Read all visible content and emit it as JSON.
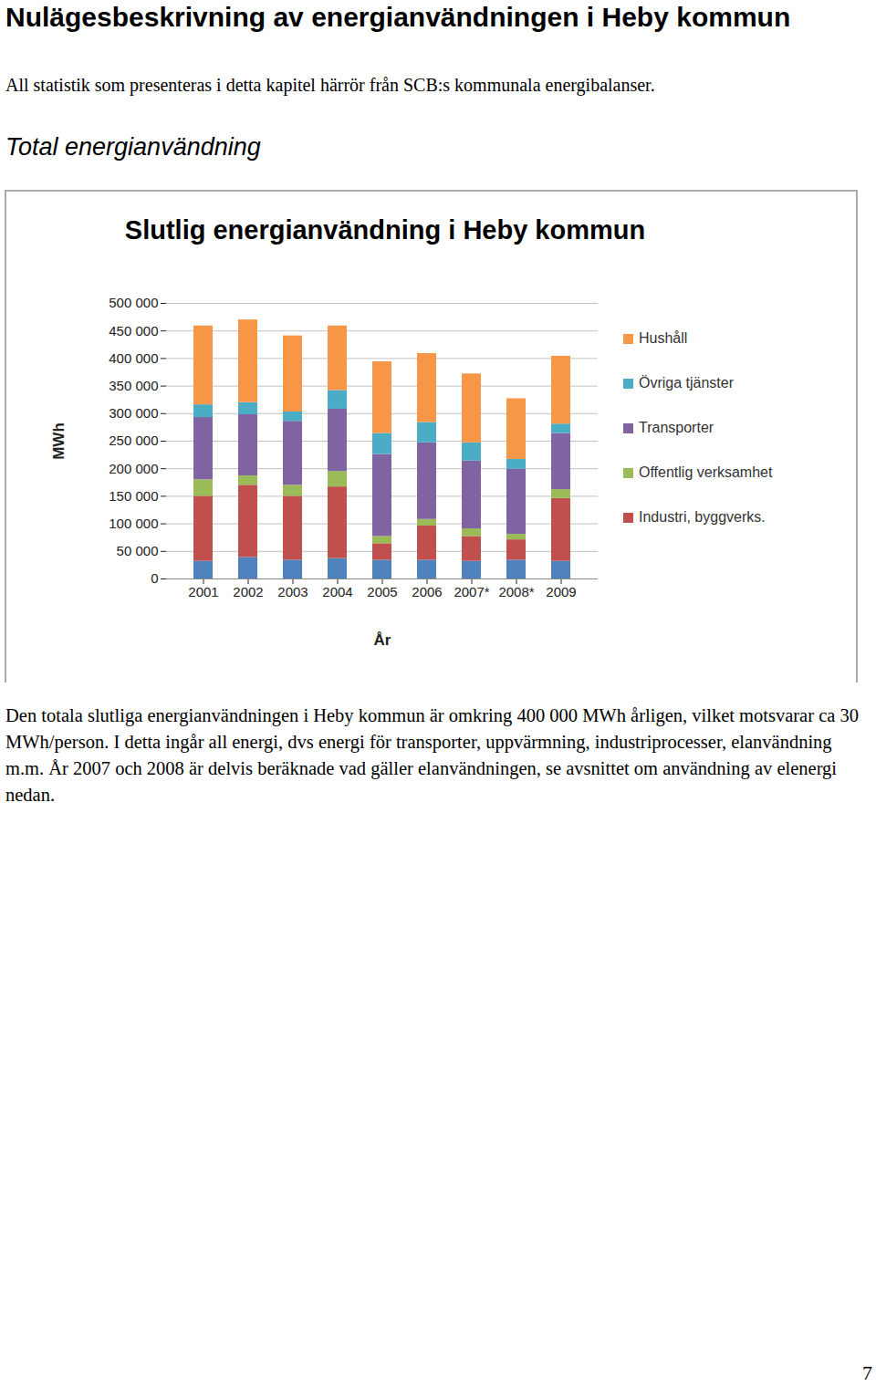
{
  "heading": "Nulägesbeskrivning av energianvändningen i Heby kommun",
  "intro": "All statistik som presenteras i detta kapitel härrör från SCB:s kommunala energibalanser.",
  "section_title": "Total energianvändning",
  "chart_data": {
    "type": "bar",
    "stacked": true,
    "title": "Slutlig energianvändning i Heby kommun",
    "x_label": "År",
    "y_label": "MWh",
    "categories": [
      "2001",
      "2002",
      "2003",
      "2004",
      "2005",
      "2006",
      "2007*",
      "2008*",
      "2009"
    ],
    "series": [
      {
        "name": null,
        "color": "#4f81bd",
        "values": [
          32000,
          39000,
          34000,
          37000,
          34000,
          34000,
          32000,
          34000,
          32000
        ]
      },
      {
        "name": "Industri, byggverks.",
        "color": "#c0504d",
        "values": [
          118000,
          131000,
          116000,
          130000,
          30000,
          62000,
          45000,
          37000,
          114000
        ]
      },
      {
        "name": "Offentlig verksamhet",
        "color": "#9bbb59",
        "values": [
          30000,
          17000,
          20000,
          28000,
          13000,
          12000,
          14000,
          10000,
          16000
        ]
      },
      {
        "name": "Transporter",
        "color": "#8064a2",
        "values": [
          113000,
          111000,
          116000,
          113000,
          149000,
          139000,
          123000,
          118000,
          102000
        ]
      },
      {
        "name": "Övriga tjänster",
        "color": "#4bacc6",
        "values": [
          23000,
          22000,
          17000,
          34000,
          38000,
          37000,
          33000,
          18000,
          17000
        ]
      },
      {
        "name": "Hushåll",
        "color": "#f79646",
        "values": [
          143000,
          150000,
          138000,
          117000,
          130000,
          125000,
          125000,
          110000,
          123000
        ]
      }
    ],
    "ylim": [
      0,
      500000
    ],
    "yticks": [
      0,
      {
        "value": 50000,
        "label": "50 000"
      },
      {
        "value": 100000,
        "label": "100 000"
      },
      {
        "value": 150000,
        "label": "150 000"
      },
      {
        "value": 200000,
        "label": "200 000"
      },
      {
        "value": 250000,
        "label": "250 000"
      },
      {
        "value": 300000,
        "label": "300 000"
      },
      {
        "value": 350000,
        "label": "350 000"
      },
      {
        "value": 400000,
        "label": "400 000"
      },
      {
        "value": 450000,
        "label": "450 000"
      },
      {
        "value": 500000,
        "label": "500 000"
      }
    ],
    "grid": true,
    "legend": "right"
  },
  "paragraph": "Den totala slutliga energianvändningen i Heby kommun är omkring 400 000 MWh årligen, vilket motsvarar ca 30 MWh/person. I detta ingår all energi, dvs energi för transporter, uppvärmning, industriprocesser, elanvändning m.m. År 2007 och 2008 är delvis beräknade vad gäller elanvändningen, se avsnittet om användning av elenergi nedan.",
  "page_number": 7
}
